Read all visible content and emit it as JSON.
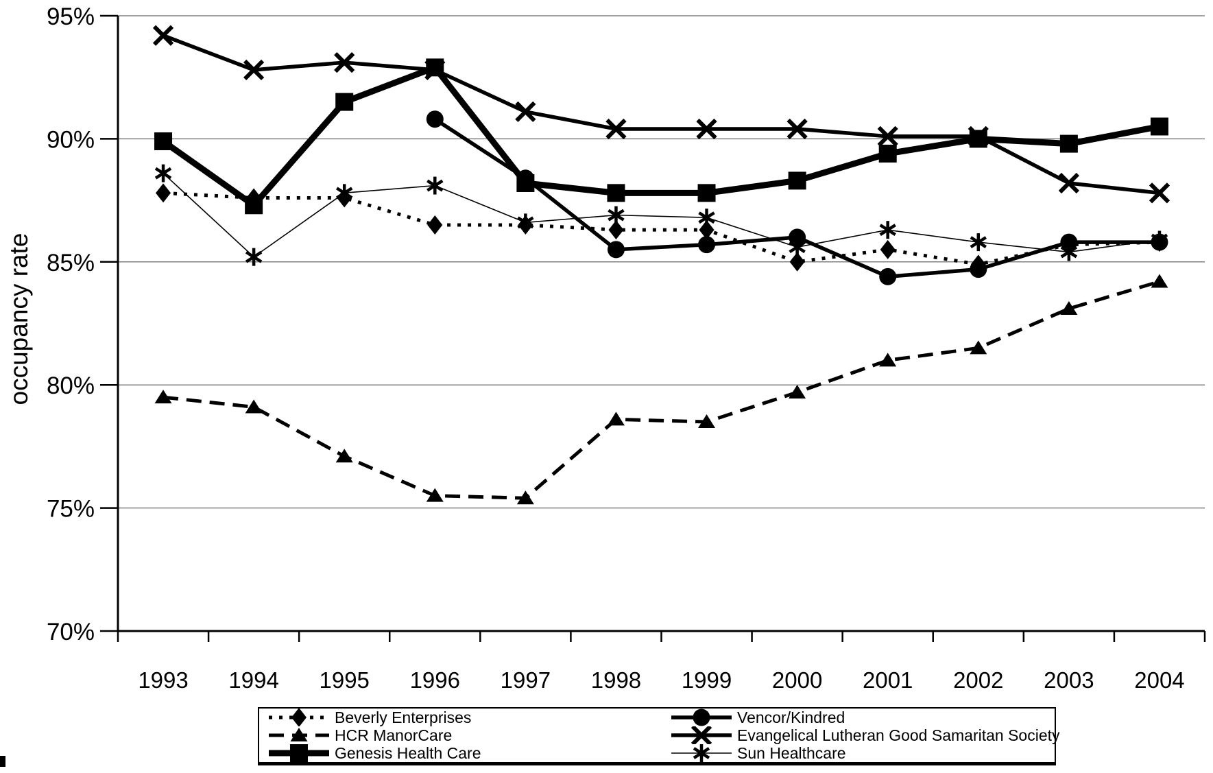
{
  "chart_data": {
    "type": "line",
    "title": "",
    "xlabel": "",
    "ylabel": "occupancy rate",
    "categories": [
      "1993",
      "1994",
      "1995",
      "1996",
      "1997",
      "1998",
      "1999",
      "2000",
      "2001",
      "2002",
      "2003",
      "2004"
    ],
    "ylim": [
      70,
      95
    ],
    "yticks": [
      95,
      90,
      85,
      80,
      75,
      70
    ],
    "ytick_suffix": "%",
    "grid": true,
    "legend_position": "bottom",
    "colors": {
      "series": "#000000",
      "gridline": "#808080",
      "axis": "#000000",
      "background": "#ffffff"
    },
    "series": [
      {
        "name": "Beverly Enterprises",
        "marker": "diamond",
        "line_style": "dotted",
        "line_weight": "medium",
        "values": [
          87.8,
          87.6,
          87.6,
          86.5,
          86.5,
          86.3,
          86.3,
          85.0,
          85.5,
          84.9,
          85.7,
          85.8
        ]
      },
      {
        "name": "HCR ManorCare",
        "marker": "triangle",
        "line_style": "dashed",
        "line_weight": "medium",
        "values": [
          79.5,
          79.1,
          77.1,
          75.5,
          75.4,
          78.6,
          78.5,
          79.7,
          81.0,
          81.5,
          83.1,
          84.2
        ]
      },
      {
        "name": "Genesis Health Care",
        "marker": "square",
        "line_style": "solid",
        "line_weight": "xthick",
        "values": [
          89.9,
          87.3,
          91.5,
          92.9,
          88.2,
          87.8,
          87.8,
          88.3,
          89.4,
          90.0,
          89.8,
          90.5
        ]
      },
      {
        "name": "Vencor/Kindred",
        "marker": "circle",
        "line_style": "solid",
        "line_weight": "thick",
        "values": [
          null,
          null,
          null,
          90.8,
          88.4,
          85.5,
          85.7,
          86.0,
          84.4,
          84.7,
          85.8,
          85.8
        ]
      },
      {
        "name": "Evangelical Lutheran Good Samaritan Society",
        "marker": "x",
        "line_style": "solid",
        "line_weight": "thick",
        "values": [
          94.2,
          92.8,
          93.1,
          92.8,
          91.1,
          90.4,
          90.4,
          90.4,
          90.1,
          90.1,
          88.2,
          87.8
        ]
      },
      {
        "name": "Sun Healthcare",
        "marker": "asterisk",
        "line_style": "solid",
        "line_weight": "thin",
        "values": [
          88.6,
          85.2,
          87.8,
          88.1,
          86.6,
          86.9,
          86.8,
          85.6,
          86.3,
          85.8,
          85.4,
          85.9
        ]
      }
    ],
    "legend": {
      "left_column": [
        "Beverly Enterprises",
        "HCR ManorCare",
        "Genesis Health Care"
      ],
      "right_column": [
        "Vencor/Kindred",
        "Evangelical Lutheran Good Samaritan Society",
        "Sun Healthcare"
      ]
    }
  }
}
